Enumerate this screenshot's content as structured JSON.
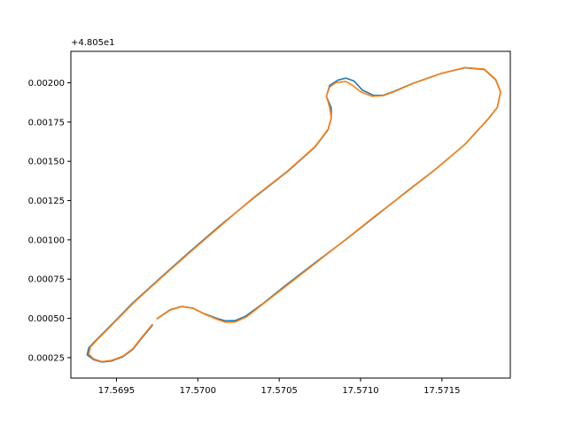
{
  "chart_data": {
    "type": "line",
    "title": "",
    "xlabel": "",
    "ylabel": "",
    "y_offset_text": "+4.805e1",
    "xlim": [
      17.56922,
      17.57192
    ],
    "ylim": [
      0.00012,
      0.0022
    ],
    "x_ticks": [
      {
        "value": 17.5695,
        "label": "17.5695"
      },
      {
        "value": 17.57,
        "label": "17.5700"
      },
      {
        "value": 17.5705,
        "label": "17.5705"
      },
      {
        "value": 17.571,
        "label": "17.5710"
      },
      {
        "value": 17.5715,
        "label": "17.5715"
      }
    ],
    "y_ticks": [
      {
        "value": 0.00025,
        "label": "0.00025"
      },
      {
        "value": 0.0005,
        "label": "0.00050"
      },
      {
        "value": 0.00075,
        "label": "0.00075"
      },
      {
        "value": 0.001,
        "label": "0.00100"
      },
      {
        "value": 0.00125,
        "label": "0.00125"
      },
      {
        "value": 0.0015,
        "label": "0.00150"
      },
      {
        "value": 0.00175,
        "label": "0.00175"
      },
      {
        "value": 0.002,
        "label": "0.00200"
      }
    ],
    "grid": false,
    "legend": "none",
    "series": [
      {
        "color": "#1f77b4",
        "x": [
          17.56972,
          17.56966,
          17.5696,
          17.56954,
          17.56947,
          17.56941,
          17.56936,
          17.56932,
          17.56933,
          17.56937,
          17.56946,
          17.5696,
          17.56977,
          17.56995,
          17.57014,
          17.57034,
          17.57055,
          17.57072,
          17.5708,
          17.57082,
          17.57082,
          17.57079,
          17.57081,
          17.57086,
          17.57091,
          17.57096,
          17.57101,
          17.57108,
          17.57114,
          17.5712,
          17.57132,
          17.57149,
          17.57164,
          17.57176,
          17.57183,
          17.57186,
          17.57184,
          17.57178,
          17.57164,
          17.57146,
          17.57128,
          17.5711,
          17.57092,
          17.57073,
          17.57054,
          17.5704,
          17.57029,
          17.57023,
          17.57017,
          17.57012,
          17.57004,
          17.56997,
          17.5699,
          17.56983,
          17.56975
        ],
        "y": [
          0.000455,
          0.00038,
          0.000302,
          0.000256,
          0.000229,
          0.000222,
          0.000237,
          0.000268,
          0.000312,
          0.000356,
          0.00045,
          0.000598,
          0.000758,
          0.000924,
          0.001094,
          0.001264,
          0.001434,
          0.001591,
          0.0017,
          0.001775,
          0.00184,
          0.001914,
          0.001983,
          0.002017,
          0.00203,
          0.002011,
          0.001954,
          0.00192,
          0.001921,
          0.001943,
          0.001996,
          0.002058,
          0.002095,
          0.002085,
          0.002019,
          0.00194,
          0.001842,
          0.001764,
          0.001607,
          0.001449,
          0.001305,
          0.001157,
          0.00101,
          0.000862,
          0.000711,
          0.000594,
          0.000512,
          0.000486,
          0.000484,
          0.000499,
          0.00053,
          0.000565,
          0.000576,
          0.000555,
          0.000499
        ]
      },
      {
        "color": "#ff7f0e",
        "x": [
          17.56972,
          17.56966,
          17.5696,
          17.56954,
          17.56947,
          17.56941,
          17.56936,
          17.56933,
          17.56934,
          17.56938,
          17.56947,
          17.56961,
          17.56978,
          17.56996,
          17.57015,
          17.57034,
          17.57055,
          17.57072,
          17.5708,
          17.57082,
          17.57081,
          17.57079,
          17.57081,
          17.57085,
          17.57091,
          17.57095,
          17.571,
          17.57107,
          17.57114,
          17.5712,
          17.57133,
          17.5715,
          17.57164,
          17.57176,
          17.57183,
          17.57186,
          17.57184,
          17.57178,
          17.57164,
          17.57146,
          17.57128,
          17.57109,
          17.57091,
          17.57073,
          17.57055,
          17.57041,
          17.5703,
          17.57023,
          17.57017,
          17.57012,
          17.57004,
          17.56997,
          17.5699,
          17.56983,
          17.56975
        ],
        "y": [
          0.000461,
          0.000385,
          0.000306,
          0.00026,
          0.000233,
          0.000225,
          0.000242,
          0.000273,
          0.000317,
          0.000362,
          0.000456,
          0.000603,
          0.000763,
          0.000928,
          0.001098,
          0.001267,
          0.001437,
          0.001594,
          0.001704,
          0.001778,
          0.001843,
          0.001916,
          0.001972,
          0.002002,
          0.002008,
          0.001984,
          0.001943,
          0.001914,
          0.001918,
          0.00194,
          0.001999,
          0.002061,
          0.002097,
          0.002087,
          0.002022,
          0.001943,
          0.001844,
          0.001766,
          0.001607,
          0.001448,
          0.001302,
          0.001152,
          0.001004,
          0.000858,
          0.000712,
          0.000599,
          0.00051,
          0.000477,
          0.000475,
          0.000494,
          0.000528,
          0.000564,
          0.000575,
          0.000553,
          0.000497
        ]
      }
    ]
  }
}
